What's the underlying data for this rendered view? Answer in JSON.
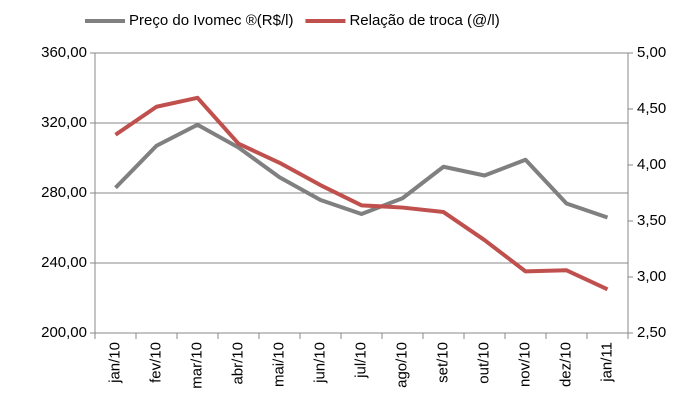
{
  "chart_data": {
    "type": "line",
    "categories": [
      "jan/10",
      "fev/10",
      "mar/10",
      "abr/10",
      "mai/10",
      "jun/10",
      "jul/10",
      "ago/10",
      "set/10",
      "out/10",
      "nov/10",
      "dez/10",
      "jan/11"
    ],
    "series": [
      {
        "name": "Preço do Ivomec ®(R$/l)",
        "color": "#808080",
        "values": [
          283,
          307,
          319,
          306,
          289,
          276,
          268,
          277,
          295,
          290,
          299,
          274,
          266
        ]
      },
      {
        "name": "Relação de troca (@/l)",
        "color": "#c0504d",
        "axis": "y2",
        "values": [
          4.27,
          4.52,
          4.6,
          4.19,
          4.02,
          3.82,
          3.64,
          3.62,
          3.58,
          3.33,
          3.05,
          3.06,
          2.89
        ]
      }
    ],
    "ylim": [
      200,
      360
    ],
    "yticks": [
      {
        "value": 200,
        "label": "200,00"
      },
      {
        "value": 240,
        "label": "240,00"
      },
      {
        "value": 280,
        "label": "280,00"
      },
      {
        "value": 320,
        "label": "320,00"
      },
      {
        "value": 360,
        "label": "360,00"
      }
    ],
    "y2lim": [
      2.5,
      5
    ],
    "y2ticks": [
      {
        "value": 2.5,
        "label": "2,50"
      },
      {
        "value": 3,
        "label": "3,00"
      },
      {
        "value": 3.5,
        "label": "3,50"
      },
      {
        "value": 4,
        "label": "4,00"
      },
      {
        "value": 4.5,
        "label": "4,50"
      },
      {
        "value": 5,
        "label": "5,00"
      }
    ],
    "grid": true,
    "legend": "top"
  }
}
